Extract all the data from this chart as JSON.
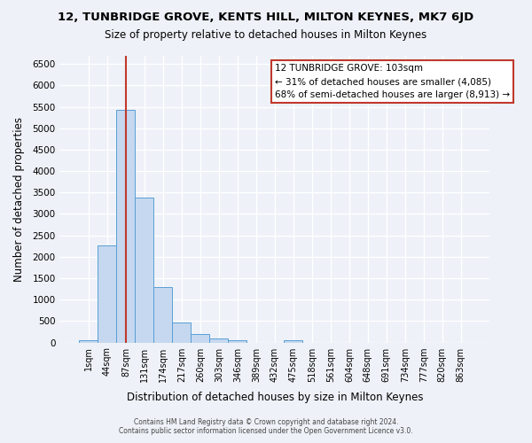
{
  "title": "12, TUNBRIDGE GROVE, KENTS HILL, MILTON KEYNES, MK7 6JD",
  "subtitle": "Size of property relative to detached houses in Milton Keynes",
  "xlabel": "Distribution of detached houses by size in Milton Keynes",
  "ylabel": "Number of detached properties",
  "bar_color": "#c5d8f0",
  "bar_edge_color": "#5a9fd4",
  "bin_labels": [
    "1sqm",
    "44sqm",
    "87sqm",
    "131sqm",
    "174sqm",
    "217sqm",
    "260sqm",
    "303sqm",
    "346sqm",
    "389sqm",
    "432sqm",
    "475sqm",
    "518sqm",
    "561sqm",
    "604sqm",
    "648sqm",
    "691sqm",
    "734sqm",
    "777sqm",
    "820sqm",
    "863sqm"
  ],
  "bar_values": [
    60,
    2260,
    5430,
    3380,
    1290,
    475,
    195,
    90,
    45,
    0,
    0,
    60,
    0,
    0,
    0,
    0,
    0,
    0,
    0,
    0,
    0
  ],
  "ylim": [
    0,
    6700
  ],
  "yticks": [
    0,
    500,
    1000,
    1500,
    2000,
    2500,
    3000,
    3500,
    4000,
    4500,
    5000,
    5500,
    6000,
    6500
  ],
  "vline_x": 2,
  "vline_color": "#c0392b",
  "annotation_title": "12 TUNBRIDGE GROVE: 103sqm",
  "annotation_line1": "← 31% of detached houses are smaller (4,085)",
  "annotation_line2": "68% of semi-detached houses are larger (8,913) →",
  "annotation_box_color": "#ffffff",
  "annotation_box_edge": "#c0392b",
  "footer1": "Contains HM Land Registry data © Crown copyright and database right 2024.",
  "footer2": "Contains public sector information licensed under the Open Government Licence v3.0.",
  "bg_color": "#eef2f8",
  "grid_color": "#ffffff"
}
